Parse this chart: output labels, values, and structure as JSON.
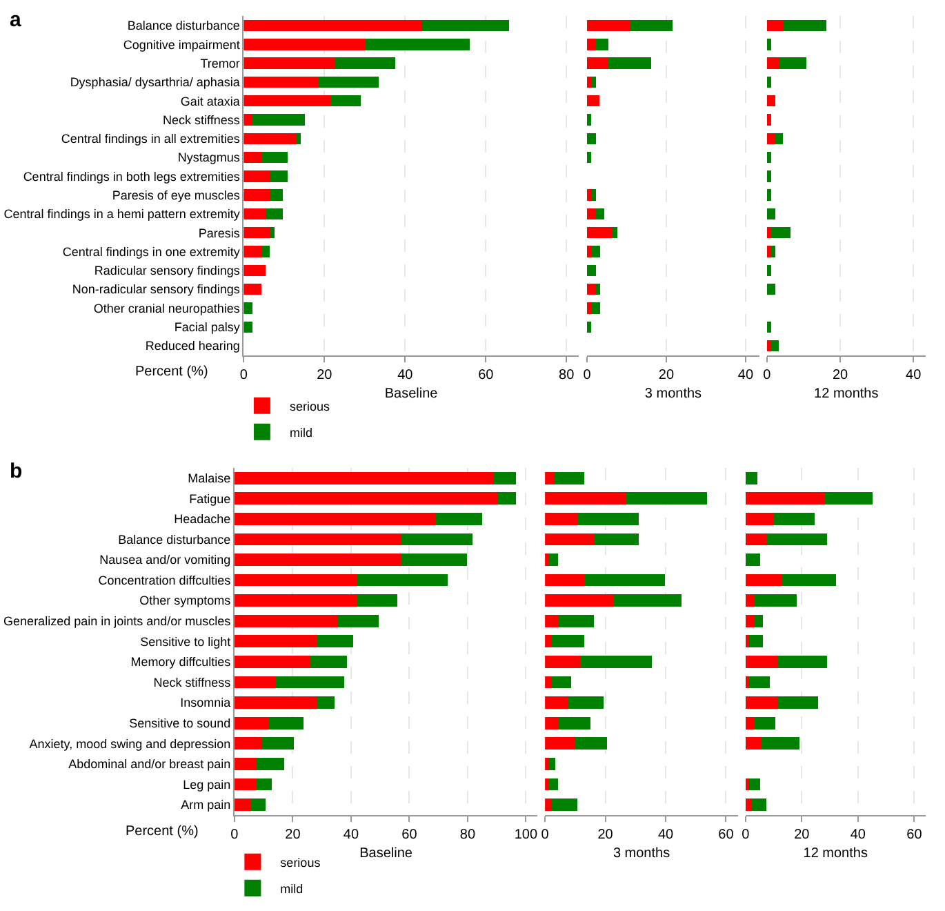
{
  "chart_data": [
    {
      "type": "bar",
      "title": "a",
      "xlabel": "Baseline",
      "orientation": "horizontal",
      "stacked": true,
      "grid": "x",
      "legend": "bottom left",
      "annotations": [
        "Percent (%)"
      ],
      "categories": [
        "Balance disturbance",
        "Cognitive impairment",
        "Tremor",
        "Dysphasia/ dysarthria/ aphasia",
        "Gait ataxia",
        "Neck stiffness",
        "Central findings in all extremities",
        "Nystagmus",
        "Central findings in both legs extremities",
        "Paresis of eye muscles",
        "Central findings in a hemi pattern extremity",
        "Paresis",
        "Central findings in one extremity",
        "Radicular sensory findings",
        "Non-radicular sensory findings",
        "Other cranial neuropathies",
        "Facial palsy",
        "Reduced hearing"
      ],
      "xlim": [
        0,
        83
      ],
      "xticks": [
        0,
        20,
        40,
        60,
        80
      ],
      "series": [
        {
          "name": "serious",
          "color": "#ff0000",
          "values": [
            44.3,
            30.1,
            22.6,
            18.4,
            21.5,
            2.2,
            13,
            4.3,
            6.5,
            6.5,
            5.4,
            6.5,
            4.3,
            5.4,
            4.3,
            0,
            0,
            0
          ]
        },
        {
          "name": "mild",
          "color": "#008000",
          "values": [
            21.4,
            25.9,
            15,
            15,
            7.5,
            12.9,
            1.1,
            6.5,
            4.3,
            3.2,
            4.3,
            1.1,
            2.2,
            0,
            0,
            2.2,
            2.2,
            0
          ]
        }
      ]
    },
    {
      "type": "bar",
      "xlabel": "3 months",
      "orientation": "horizontal",
      "stacked": true,
      "grid": "x",
      "tick_labels": "x",
      "categories": [
        "Balance disturbance",
        "Cognitive impairment",
        "Tremor",
        "Dysphasia/ dysarthria/ aphasia",
        "Gait ataxia",
        "Neck stiffness",
        "Central findings in all extremities",
        "Nystagmus",
        "Central findings in both legs extremities",
        "Paresis of eye muscles",
        "Central findings in a hemi pattern extremity",
        "Paresis",
        "Central findings in one extremity",
        "Radicular sensory findings",
        "Non-radicular sensory findings",
        "Other cranial neuropathies",
        "Facial palsy",
        "Reduced hearing"
      ],
      "xlim": [
        0,
        43.5
      ],
      "xticks": [
        0,
        20,
        40
      ],
      "series": [
        {
          "color": "#ff0000",
          "values": [
            10.8,
            2.2,
            5.4,
            1.1,
            3.2,
            0,
            0,
            0,
            0,
            1.1,
            2.2,
            6.5,
            1.1,
            0,
            2.2,
            1.1,
            0,
            0
          ]
        },
        {
          "color": "#008000",
          "values": [
            10.8,
            3.2,
            10.8,
            1.1,
            0,
            1.1,
            2.2,
            1.1,
            0,
            1.1,
            2.2,
            1.1,
            2.2,
            2.2,
            1.1,
            2.2,
            1.1,
            0
          ]
        }
      ]
    },
    {
      "type": "bar",
      "xlabel": "12 months",
      "orientation": "horizontal",
      "stacked": true,
      "grid": "x",
      "tick_labels": "x",
      "categories": [
        "Balance disturbance",
        "Cognitive impairment",
        "Tremor",
        "Dysphasia/ dysarthria/ aphasia",
        "Gait ataxia",
        "Neck stiffness",
        "Central findings in all extremities",
        "Nystagmus",
        "Central findings in both legs extremities",
        "Paresis of eye muscles",
        "Central findings in a hemi pattern extremity",
        "Paresis",
        "Central findings in one extremity",
        "Radicular sensory findings",
        "Non-radicular sensory findings",
        "Other cranial neuropathies",
        "Facial palsy",
        "Reduced hearing"
      ],
      "xlim": [
        0,
        43.3
      ],
      "xticks": [
        0,
        20,
        40
      ],
      "series": [
        {
          "color": "#ff0000",
          "values": [
            4.3,
            0,
            3.3,
            0,
            2.2,
            1.1,
            2.2,
            0,
            0,
            0,
            0,
            1.1,
            1.1,
            0,
            0,
            0,
            0,
            1.1
          ]
        },
        {
          "color": "#008000",
          "values": [
            12,
            1.1,
            7.5,
            1.1,
            0,
            0,
            2.2,
            1.1,
            1.1,
            1.1,
            2.2,
            5.4,
            1.1,
            1.1,
            2.2,
            0,
            1.1,
            2.2
          ]
        }
      ]
    },
    {
      "type": "bar",
      "title": "b",
      "xlabel": "Baseline",
      "orientation": "horizontal",
      "stacked": true,
      "grid": "x",
      "legend": "bottom left",
      "annotations": [
        "Percent (%)"
      ],
      "categories": [
        "Malaise",
        "Fatigue",
        "Headache",
        "Balance disturbance",
        "Nausea and/or vomiting",
        "Concentration diffculties",
        "Other symptoms",
        "Generalized pain in joints and/or muscles",
        "Sensitive to light",
        "Memory diffculties",
        "Neck stiffness",
        "Insomnia",
        "Sensitive to sound",
        "Anxiety, mood swing and depression",
        "Abdominal and/or breast pain",
        "Leg pain",
        "Arm pain"
      ],
      "xlim": [
        0,
        104
      ],
      "xticks": [
        0,
        20,
        40,
        60,
        80,
        100
      ],
      "series": [
        {
          "name": "serious",
          "color": "#ff0000",
          "values": [
            89.1,
            90.4,
            68.8,
            57,
            57,
            41.9,
            41.9,
            35.6,
            28.1,
            25.8,
            14,
            28.1,
            11.8,
            9.6,
            7.6,
            7.6,
            5.4
          ]
        },
        {
          "name": "mild",
          "color": "#008000",
          "values": [
            7.6,
            6.3,
            16.1,
            24.7,
            22.7,
            31.2,
            14,
            13.8,
            12.7,
            12.9,
            23.6,
            6.2,
            11.8,
            10.7,
            9.5,
            5.3,
            5.3
          ]
        }
      ]
    },
    {
      "type": "bar",
      "xlabel": "3 months",
      "orientation": "horizontal",
      "stacked": true,
      "grid": "x",
      "tick_labels": "x",
      "categories": [
        "Malaise",
        "Fatigue",
        "Headache",
        "Balance disturbance",
        "Nausea and/or vomiting",
        "Concentration diffculties",
        "Other symptoms",
        "Generalized pain in joints and/or muscles",
        "Sensitive to light",
        "Memory diffculties",
        "Neck stiffness",
        "Insomnia",
        "Sensitive to sound",
        "Anxiety, mood swing and depression",
        "Abdominal and/or breast pain",
        "Leg pain",
        "Arm pain"
      ],
      "xlim": [
        0,
        64
      ],
      "xticks": [
        0,
        20,
        40,
        60
      ],
      "series": [
        {
          "color": "#ff0000",
          "values": [
            3.2,
            26.8,
            10.8,
            16.1,
            1.1,
            12.9,
            22.6,
            4.3,
            2.2,
            11.8,
            2.2,
            7.5,
            4.3,
            9.7,
            1.1,
            1.1,
            2.2
          ]
        },
        {
          "color": "#008000",
          "values": [
            9.7,
            27,
            20.3,
            15,
            3.2,
            26.9,
            22.6,
            11.8,
            10.7,
            23.7,
            6.5,
            11.8,
            10.8,
            10.8,
            2.2,
            3.2,
            8.6
          ]
        }
      ]
    },
    {
      "type": "bar",
      "xlabel": "12 months",
      "orientation": "horizontal",
      "stacked": true,
      "grid": "x",
      "tick_labels": "x",
      "categories": [
        "Malaise",
        "Fatigue",
        "Headache",
        "Balance disturbance",
        "Nausea and/or vomiting",
        "Concentration diffculties",
        "Other symptoms",
        "Generalized pain in joints and/or muscles",
        "Sensitive to light",
        "Memory diffculties",
        "Neck stiffness",
        "Insomnia",
        "Sensitive to sound",
        "Anxiety, mood swing and depression",
        "Abdominal and/or breast pain",
        "Leg pain",
        "Arm pain"
      ],
      "xlim": [
        0,
        64
      ],
      "xticks": [
        0,
        20,
        40,
        60
      ],
      "series": [
        {
          "color": "#ff0000",
          "values": [
            0,
            28,
            9.8,
            7.5,
            0,
            12.8,
            3.3,
            3.3,
            1.1,
            11.7,
            1.1,
            11.7,
            3.3,
            5.4,
            0,
            1.1,
            2.1
          ]
        },
        {
          "color": "#008000",
          "values": [
            4.2,
            17.1,
            14.9,
            21.5,
            5.3,
            19.4,
            14.9,
            3,
            5.2,
            17.3,
            7.5,
            14,
            7.4,
            13.8,
            0,
            4.2,
            5.3
          ]
        }
      ]
    }
  ]
}
